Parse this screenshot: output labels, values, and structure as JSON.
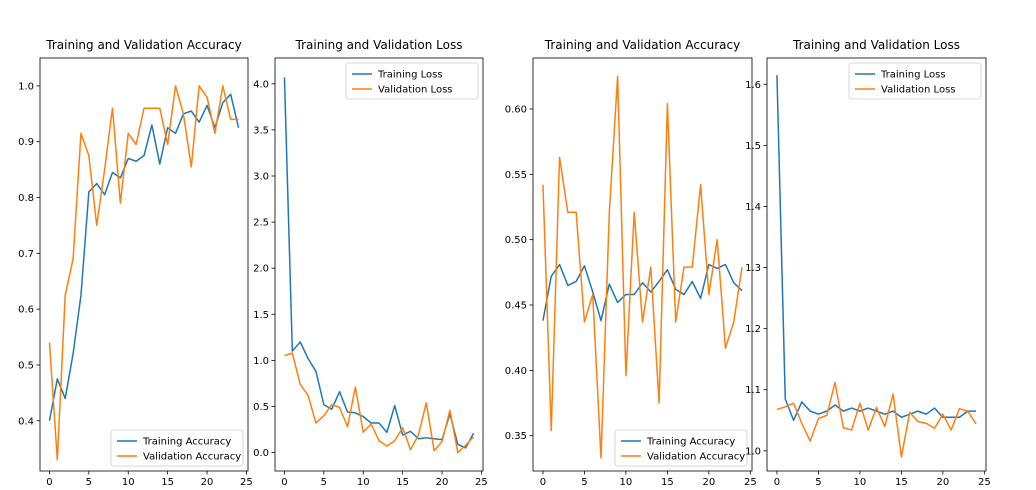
{
  "colors": {
    "training": "#1f77b4",
    "validation": "#ff7f0e",
    "axes": "#000000"
  },
  "chart_data": [
    {
      "type": "line",
      "title": "Training and Validation Accuracy",
      "xlabel": "",
      "ylabel": "",
      "xlim": [
        -1.2,
        25.2
      ],
      "ylim": [
        0.31,
        1.05
      ],
      "xticks": [
        0,
        5,
        10,
        15,
        20,
        25
      ],
      "yticks": [
        0.4,
        0.5,
        0.6,
        0.7,
        0.8,
        0.9,
        1.0
      ],
      "ytick_labels": [
        "0.4",
        "0.5",
        "0.6",
        "0.7",
        "0.8",
        "0.9",
        "1.0"
      ],
      "grid": false,
      "legend": "lower-right",
      "x": [
        0,
        1,
        2,
        3,
        4,
        5,
        6,
        7,
        8,
        9,
        10,
        11,
        12,
        13,
        14,
        15,
        16,
        17,
        18,
        19,
        20,
        21,
        22,
        23,
        24
      ],
      "series": [
        {
          "name": "Training Accuracy",
          "color": "training",
          "values": [
            0.4,
            0.475,
            0.44,
            0.52,
            0.625,
            0.81,
            0.825,
            0.805,
            0.845,
            0.835,
            0.87,
            0.865,
            0.875,
            0.93,
            0.86,
            0.925,
            0.915,
            0.95,
            0.955,
            0.935,
            0.965,
            0.925,
            0.97,
            0.985,
            0.925
          ]
        },
        {
          "name": "Validation Accuracy",
          "color": "validation",
          "values": [
            0.54,
            0.33,
            0.625,
            0.69,
            0.915,
            0.875,
            0.75,
            0.85,
            0.96,
            0.79,
            0.915,
            0.895,
            0.96,
            0.96,
            0.96,
            0.895,
            1.0,
            0.95,
            0.855,
            1.0,
            0.98,
            0.915,
            1.0,
            0.94,
            0.94
          ]
        }
      ]
    },
    {
      "type": "line",
      "title": "Training and Validation Loss",
      "xlabel": "",
      "ylabel": "",
      "xlim": [
        -1.2,
        25.2
      ],
      "ylim": [
        -0.2,
        4.28
      ],
      "xticks": [
        0,
        5,
        10,
        15,
        20,
        25
      ],
      "yticks": [
        0.0,
        0.5,
        1.0,
        1.5,
        2.0,
        2.5,
        3.0,
        3.5,
        4.0
      ],
      "ytick_labels": [
        "0.0",
        "0.5",
        "1.0",
        "1.5",
        "2.0",
        "2.5",
        "3.0",
        "3.5",
        "4.0"
      ],
      "grid": false,
      "legend": "top-right",
      "x": [
        0,
        1,
        2,
        3,
        4,
        5,
        6,
        7,
        8,
        9,
        10,
        11,
        12,
        13,
        14,
        15,
        16,
        17,
        18,
        19,
        20,
        21,
        22,
        23,
        24
      ],
      "series": [
        {
          "name": "Training Loss",
          "color": "training",
          "values": [
            4.07,
            1.1,
            1.2,
            1.02,
            0.88,
            0.52,
            0.47,
            0.66,
            0.44,
            0.43,
            0.39,
            0.32,
            0.32,
            0.22,
            0.51,
            0.19,
            0.23,
            0.15,
            0.16,
            0.15,
            0.14,
            0.42,
            0.09,
            0.05,
            0.21
          ]
        },
        {
          "name": "Validation Loss",
          "color": "validation",
          "values": [
            1.05,
            1.08,
            0.74,
            0.62,
            0.32,
            0.4,
            0.52,
            0.49,
            0.28,
            0.71,
            0.22,
            0.31,
            0.13,
            0.07,
            0.13,
            0.27,
            0.03,
            0.19,
            0.54,
            0.02,
            0.12,
            0.46,
            0.0,
            0.08,
            0.17
          ]
        }
      ]
    },
    {
      "type": "line",
      "title": "Training and Validation Accuracy",
      "xlabel": "",
      "ylabel": "",
      "xlim": [
        -1.2,
        25.2
      ],
      "ylim": [
        0.323,
        0.639
      ],
      "xticks": [
        0,
        5,
        10,
        15,
        20,
        25
      ],
      "yticks": [
        0.35,
        0.4,
        0.45,
        0.5,
        0.55,
        0.6
      ],
      "ytick_labels": [
        "0.35",
        "0.40",
        "0.45",
        "0.50",
        "0.55",
        "0.60"
      ],
      "grid": false,
      "legend": "lower-right",
      "x": [
        0,
        1,
        2,
        3,
        4,
        5,
        6,
        7,
        8,
        9,
        10,
        11,
        12,
        13,
        14,
        15,
        16,
        17,
        18,
        19,
        20,
        21,
        22,
        23,
        24
      ],
      "series": [
        {
          "name": "Training Accuracy",
          "color": "training",
          "values": [
            0.438,
            0.472,
            0.481,
            0.465,
            0.468,
            0.48,
            0.46,
            0.438,
            0.466,
            0.452,
            0.458,
            0.458,
            0.467,
            0.46,
            0.468,
            0.477,
            0.462,
            0.458,
            0.468,
            0.455,
            0.481,
            0.478,
            0.481,
            0.467,
            0.461
          ]
        },
        {
          "name": "Validation Accuracy",
          "color": "validation",
          "values": [
            0.542,
            0.354,
            0.563,
            0.521,
            0.521,
            0.437,
            0.458,
            0.333,
            0.521,
            0.625,
            0.396,
            0.521,
            0.437,
            0.479,
            0.375,
            0.604,
            0.437,
            0.479,
            0.479,
            0.542,
            0.458,
            0.5,
            0.417,
            0.437,
            0.479
          ]
        }
      ]
    },
    {
      "type": "line",
      "title": "Training and Validation Loss",
      "xlabel": "",
      "ylabel": "",
      "xlim": [
        -1.2,
        25.2
      ],
      "ylim": [
        0.967,
        1.643
      ],
      "xticks": [
        0,
        5,
        10,
        15,
        20,
        25
      ],
      "yticks": [
        1.0,
        1.1,
        1.2,
        1.3,
        1.4,
        1.5,
        1.6
      ],
      "ytick_labels": [
        "1.0",
        "1.1",
        "1.2",
        "1.3",
        "1.4",
        "1.5",
        "1.6"
      ],
      "grid": false,
      "legend": "top-right",
      "x": [
        0,
        1,
        2,
        3,
        4,
        5,
        6,
        7,
        8,
        9,
        10,
        11,
        12,
        13,
        14,
        15,
        16,
        17,
        18,
        19,
        20,
        21,
        22,
        23,
        24
      ],
      "series": [
        {
          "name": "Training Loss",
          "color": "training",
          "values": [
            1.615,
            1.085,
            1.05,
            1.08,
            1.065,
            1.06,
            1.065,
            1.075,
            1.065,
            1.07,
            1.065,
            1.07,
            1.065,
            1.06,
            1.065,
            1.055,
            1.06,
            1.065,
            1.06,
            1.07,
            1.055,
            1.055,
            1.055,
            1.065,
            1.065
          ]
        },
        {
          "name": "Validation Loss",
          "color": "validation",
          "values": [
            1.068,
            1.072,
            1.078,
            1.045,
            1.016,
            1.053,
            1.058,
            1.112,
            1.038,
            1.034,
            1.078,
            1.034,
            1.071,
            1.04,
            1.093,
            0.99,
            1.063,
            1.048,
            1.045,
            1.037,
            1.06,
            1.034,
            1.069,
            1.065,
            1.044
          ]
        }
      ]
    }
  ]
}
